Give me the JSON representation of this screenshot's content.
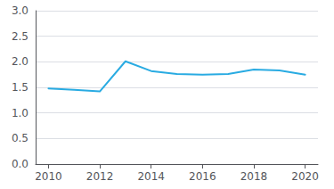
{
  "chart_data": {
    "type": "line",
    "x": [
      2010,
      2011,
      2012,
      2013,
      2014,
      2015,
      2016,
      2017,
      2018,
      2019,
      2020
    ],
    "values": [
      1.48,
      1.45,
      1.42,
      2.01,
      1.82,
      1.76,
      1.75,
      1.76,
      1.85,
      1.83,
      1.75
    ],
    "color": "#29abe2",
    "xlim": [
      2009.5,
      2020.5
    ],
    "xticks": [
      2010,
      2012,
      2014,
      2016,
      2018,
      2020
    ],
    "ylim": [
      0.0,
      3.0
    ],
    "yticks": [
      {
        "value": 0.0,
        "label": "0.0"
      },
      0.5,
      {
        "value": 1.0,
        "label": "1.0"
      },
      1.5,
      {
        "value": 2.0,
        "label": "2.0"
      },
      2.5,
      {
        "value": 3.0,
        "label": "3.0"
      }
    ],
    "grid": true
  }
}
